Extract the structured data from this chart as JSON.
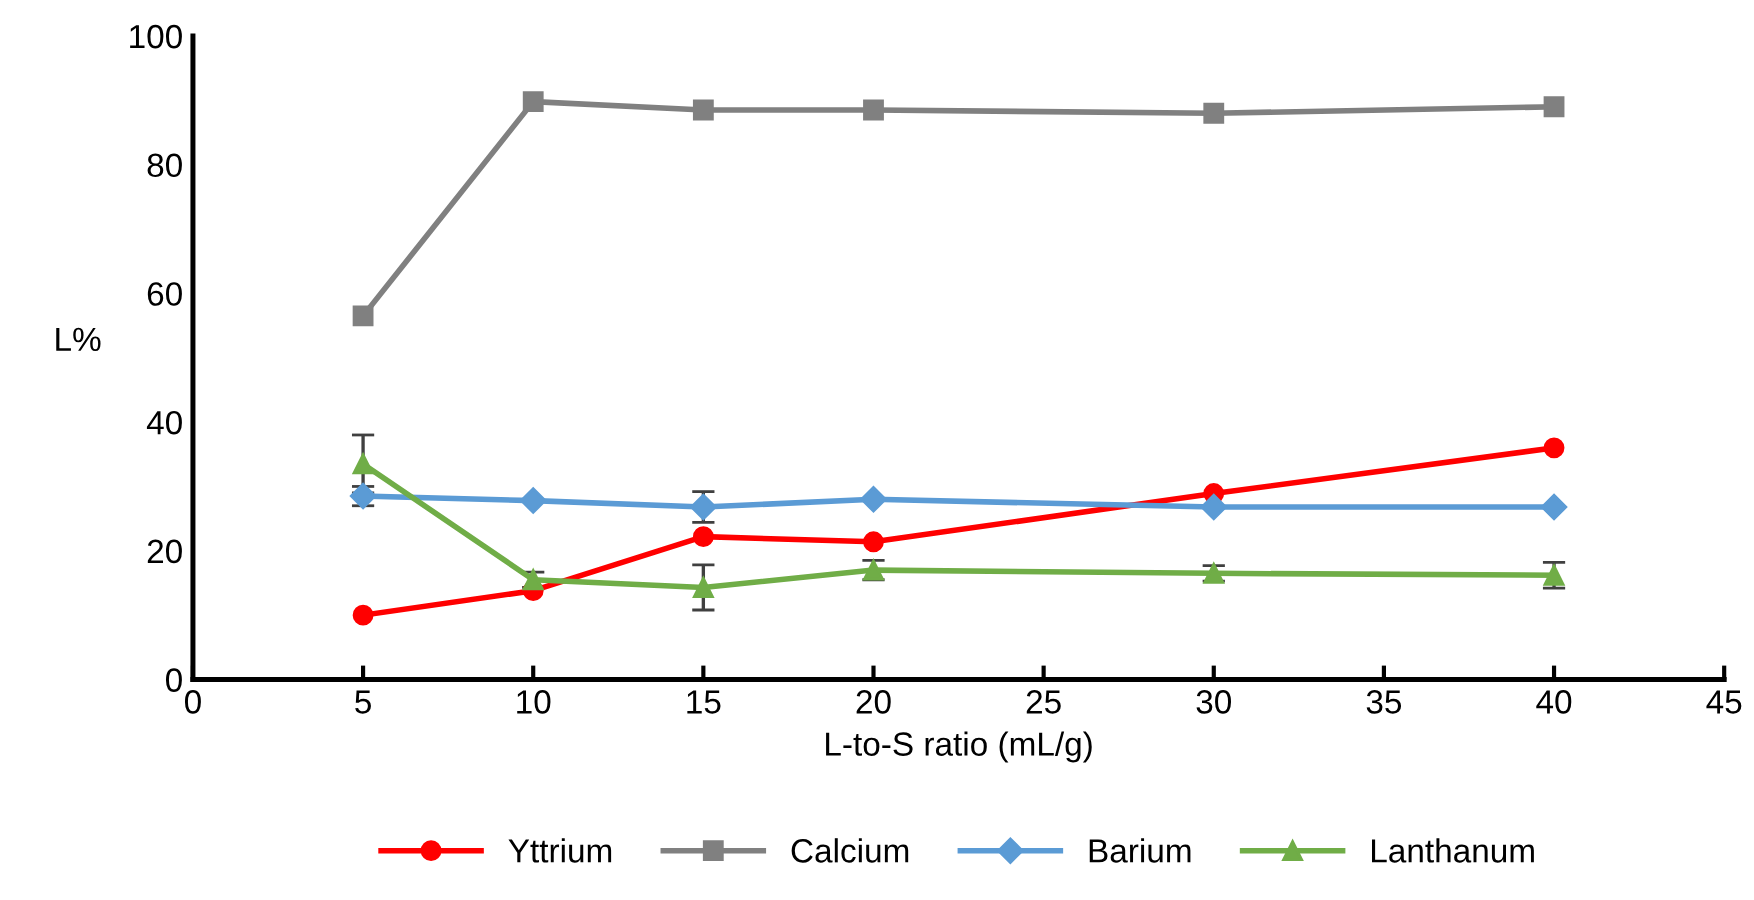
{
  "chart_data": {
    "type": "line",
    "xlabel": "L-to-S ratio (mL/g)",
    "ylabel": "L%",
    "x": [
      5,
      10,
      15,
      20,
      30,
      40
    ],
    "series": [
      {
        "name": "Yttrium",
        "color": "#ff0000",
        "marker": "circle",
        "values": [
          10,
          13.8,
          22.2,
          21.4,
          28.9,
          36
        ]
      },
      {
        "name": "Calcium",
        "color": "#808080",
        "marker": "square",
        "values": [
          56.5,
          89.8,
          88.5,
          88.5,
          88,
          89
        ]
      },
      {
        "name": "Barium",
        "color": "#5b9bd5",
        "marker": "diamond",
        "values": [
          28.5,
          27.8,
          26.8,
          28,
          26.8,
          26.8
        ],
        "errors": [
          1.5,
          null,
          2.4,
          null,
          null,
          null
        ]
      },
      {
        "name": "Lanthanum",
        "color": "#70ad47",
        "marker": "triangle",
        "values": [
          33.5,
          15.5,
          14.3,
          17,
          16.5,
          16.2
        ],
        "errors": [
          4.5,
          1.2,
          3.5,
          1.5,
          1.2,
          2
        ]
      }
    ],
    "xlim": [
      0,
      45
    ],
    "xticks": [
      0,
      5,
      10,
      15,
      20,
      25,
      30,
      35,
      40,
      45
    ],
    "ylim": [
      0,
      100
    ],
    "yticks": [
      0,
      20,
      40,
      60,
      80,
      100
    ],
    "grid": false,
    "legend": "bottom"
  }
}
